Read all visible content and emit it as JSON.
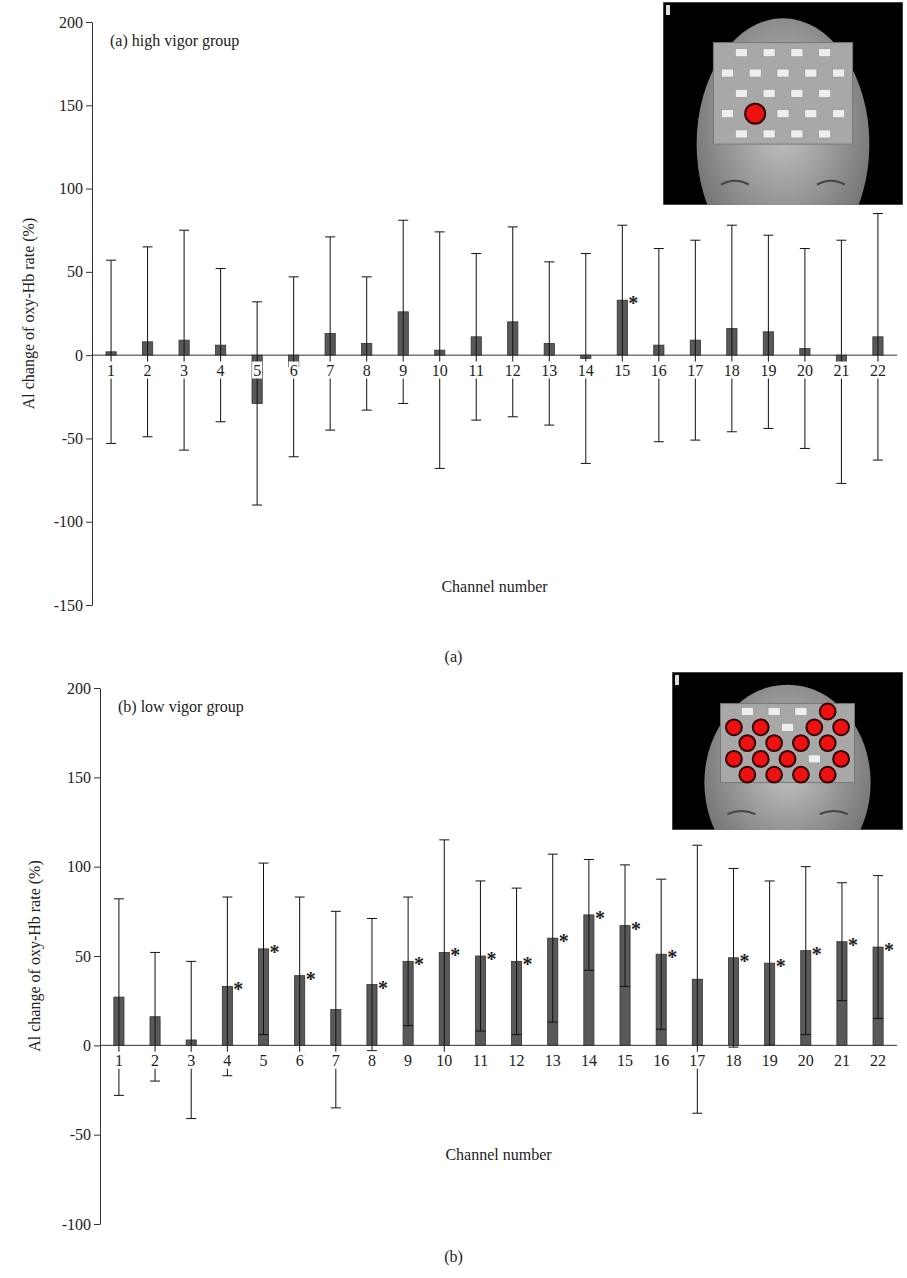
{
  "chart_data": [
    {
      "type": "bar",
      "title": "(a) high vigor group",
      "caption": "(a)",
      "x_label": "Channel number",
      "y_label": "Al change of oxy-Hb rate (%)",
      "categories": [
        "1",
        "2",
        "3",
        "4",
        "5",
        "6",
        "7",
        "8",
        "9",
        "10",
        "11",
        "12",
        "13",
        "14",
        "15",
        "16",
        "17",
        "18",
        "19",
        "20",
        "21",
        "22"
      ],
      "values": [
        2,
        8,
        9,
        6,
        -29,
        -7,
        13,
        7,
        26,
        3,
        11,
        20,
        7,
        -2,
        33,
        6,
        9,
        16,
        14,
        4,
        -4,
        11
      ],
      "errors": [
        55,
        57,
        66,
        46,
        61,
        54,
        58,
        40,
        55,
        71,
        50,
        57,
        49,
        63,
        45,
        58,
        60,
        62,
        58,
        60,
        73,
        74
      ],
      "annotations": [
        {
          "x": "15",
          "text": "*"
        }
      ],
      "color": "#595959",
      "ylim": [
        -150,
        200
      ],
      "yticks": [
        -150,
        -100,
        -50,
        0,
        50,
        100,
        150,
        200
      ]
    },
    {
      "type": "bar",
      "title": "(b) low vigor group",
      "caption": "(b)",
      "x_label": "Channel number",
      "y_label": "Al change of oxy-Hb rate (%)",
      "categories": [
        "1",
        "2",
        "3",
        "4",
        "5",
        "6",
        "7",
        "8",
        "9",
        "10",
        "11",
        "12",
        "13",
        "14",
        "15",
        "16",
        "17",
        "18",
        "19",
        "20",
        "21",
        "22"
      ],
      "values": [
        27,
        16,
        3,
        33,
        54,
        39,
        20,
        34,
        47,
        52,
        50,
        47,
        60,
        73,
        67,
        51,
        37,
        49,
        46,
        53,
        58,
        55
      ],
      "errors": [
        55,
        36,
        44,
        50,
        48,
        44,
        55,
        37,
        36,
        63,
        42,
        41,
        47,
        31,
        34,
        42,
        75,
        50,
        46,
        47,
        33,
        40
      ],
      "annotations": [
        {
          "x": "4",
          "text": "*"
        },
        {
          "x": "5",
          "text": "*"
        },
        {
          "x": "6",
          "text": "*"
        },
        {
          "x": "8",
          "text": "*"
        },
        {
          "x": "9",
          "text": "*"
        },
        {
          "x": "10",
          "text": "*"
        },
        {
          "x": "11",
          "text": "*"
        },
        {
          "x": "12",
          "text": "*"
        },
        {
          "x": "13",
          "text": "*"
        },
        {
          "x": "14",
          "text": "*"
        },
        {
          "x": "15",
          "text": "*"
        },
        {
          "x": "16",
          "text": "*"
        },
        {
          "x": "18",
          "text": "*"
        },
        {
          "x": "19",
          "text": "*"
        },
        {
          "x": "20",
          "text": "*"
        },
        {
          "x": "21",
          "text": "*"
        },
        {
          "x": "22",
          "text": "*"
        }
      ],
      "color": "#595959",
      "ylim": [
        -100,
        200
      ],
      "yticks": [
        -100,
        -50,
        0,
        50,
        100,
        150,
        200
      ]
    }
  ]
}
